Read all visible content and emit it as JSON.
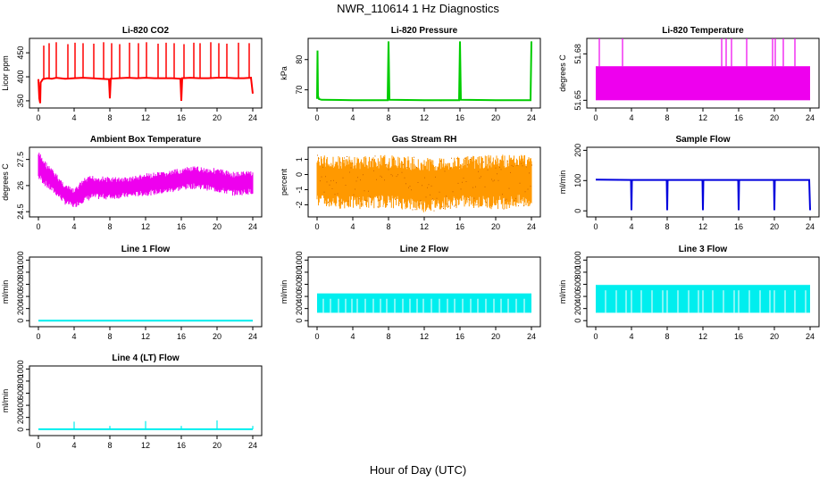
{
  "page": {
    "title": "NWR_110614  1 Hz Diagnostics",
    "xlabel": "Hour of Day (UTC)"
  },
  "chart_data": [
    {
      "type": "line",
      "title": "Li-820 CO2",
      "xlabel": "",
      "ylabel": "Licor ppm",
      "color": "#ff0000",
      "xlim": [
        -1,
        25
      ],
      "ylim": [
        335,
        480
      ],
      "xticks": [
        0,
        4,
        8,
        12,
        16,
        20,
        24
      ],
      "yticks": [
        350,
        400,
        450
      ],
      "series": [
        {
          "x": [
            0,
            0.1,
            0.2,
            0.25,
            0.5,
            1,
            1.5,
            2,
            3,
            4,
            5,
            6,
            7,
            7.9,
            8,
            8.1,
            9,
            10,
            11,
            12,
            13,
            14,
            15,
            15.9,
            16,
            16.1,
            17,
            18,
            19,
            20,
            21,
            22,
            23,
            23.8,
            24
          ],
          "y": [
            395,
            355,
            345,
            388,
            395,
            397,
            396,
            398,
            396,
            397,
            398,
            397,
            396,
            395,
            355,
            396,
            397,
            398,
            397,
            398,
            397,
            397,
            397,
            396,
            350,
            397,
            398,
            397,
            397,
            398,
            398,
            397,
            397,
            398,
            365
          ],
          "spikes_x": [
            0.6,
            1.2,
            2.0,
            3.3,
            4.1,
            5.0,
            6.2,
            7.3,
            8.2,
            9.1,
            10.2,
            11.2,
            12.1,
            13.4,
            14.3,
            15.2,
            16.3,
            17.4,
            18.1,
            19.3,
            20.2,
            21.1,
            22.4,
            23.6
          ],
          "spikes_y": [
            465,
            470,
            472,
            468,
            471,
            470,
            469,
            472,
            470,
            468,
            471,
            470,
            472,
            469,
            471,
            470,
            468,
            471,
            470,
            472,
            470,
            469,
            471,
            470
          ]
        }
      ]
    },
    {
      "type": "line",
      "title": "Li-820 Pressure",
      "xlabel": "",
      "ylabel": "kPa",
      "color": "#00cc00",
      "xlim": [
        -1,
        25
      ],
      "ylim": [
        64,
        87
      ],
      "xticks": [
        0,
        4,
        8,
        12,
        16,
        20,
        24
      ],
      "yticks": [
        70,
        80
      ],
      "series": [
        {
          "x": [
            0,
            0.05,
            0.1,
            0.2,
            0.5,
            4,
            7.9,
            8,
            8.1,
            12,
            15.9,
            16,
            16.1,
            20,
            23.9,
            24
          ],
          "y": [
            67,
            83,
            68,
            67,
            66.7,
            66.6,
            66.6,
            86,
            66.7,
            66.6,
            66.6,
            86,
            66.7,
            66.6,
            66.6,
            86
          ]
        }
      ]
    },
    {
      "type": "area",
      "title": "Li-820 Temperature",
      "xlabel": "",
      "ylabel": "degrees C",
      "color": "#ee00ee",
      "xlim": [
        -1,
        25
      ],
      "ylim": [
        51.645,
        51.69
      ],
      "xticks": [
        0,
        4,
        8,
        12,
        16,
        20,
        24
      ],
      "yticks": [
        51.65,
        51.68
      ],
      "band": [
        51.65,
        51.672
      ],
      "spikes_x": [
        0.4,
        3.0,
        14.1,
        14.6,
        15.2,
        16.9,
        19.8,
        20.1,
        21.0,
        22.3
      ],
      "spikes_y": [
        51.69,
        51.69,
        51.69,
        51.69,
        51.69,
        51.69,
        51.69,
        51.69,
        51.69,
        51.69
      ]
    },
    {
      "type": "area",
      "title": "Ambient Box Temperature",
      "xlabel": "",
      "ylabel": "degrees C",
      "color": "#ee00ee",
      "xlim": [
        -1,
        25
      ],
      "ylim": [
        24.2,
        28.2
      ],
      "xticks": [
        0,
        4,
        8,
        12,
        16,
        20,
        24
      ],
      "yticks": [
        24.5,
        26.0,
        27.5
      ],
      "series": [
        {
          "x": [
            0,
            0.5,
            1,
            2,
            3,
            4,
            5,
            6,
            8,
            10,
            12,
            14,
            16,
            17,
            18,
            20,
            22,
            24
          ],
          "upper": [
            28.0,
            27.6,
            27.3,
            26.7,
            26.1,
            25.8,
            26.4,
            26.6,
            26.5,
            26.5,
            26.7,
            26.8,
            27.0,
            27.1,
            27.1,
            27.0,
            26.8,
            26.9
          ],
          "lower": [
            26.3,
            26.1,
            25.8,
            25.4,
            24.9,
            24.7,
            25.0,
            25.2,
            25.2,
            25.3,
            25.4,
            25.5,
            25.7,
            25.8,
            25.8,
            25.6,
            25.4,
            25.5
          ]
        }
      ]
    },
    {
      "type": "scatter",
      "title": "Gas Stream RH",
      "xlabel": "",
      "ylabel": "percent",
      "color": "#ff9900",
      "color2": "#cc6600",
      "xlim": [
        -1,
        25
      ],
      "ylim": [
        -2.8,
        1.8
      ],
      "xticks": [
        0,
        4,
        8,
        12,
        16,
        20,
        24
      ],
      "yticks": [
        -2,
        -1,
        0,
        1
      ],
      "series": [
        {
          "x": [
            0,
            4,
            8,
            12,
            16,
            20,
            24
          ],
          "upper": [
            1.3,
            1.2,
            1.3,
            1.1,
            1.2,
            1.3,
            1.4
          ],
          "lower": [
            -2.2,
            -2.3,
            -2.2,
            -2.5,
            -2.2,
            -2.3,
            -2.2
          ]
        }
      ]
    },
    {
      "type": "line",
      "title": "Sample Flow",
      "xlabel": "",
      "ylabel": "ml/min",
      "color": "#0000dd",
      "xlim": [
        -1,
        25
      ],
      "ylim": [
        -20,
        210
      ],
      "xticks": [
        0,
        4,
        8,
        12,
        16,
        20,
        24
      ],
      "yticks": [
        0,
        100,
        200
      ],
      "series": [
        {
          "x": [
            0,
            3.95,
            4,
            4.05,
            7.95,
            8,
            8.05,
            11.95,
            12,
            12.05,
            15.95,
            16,
            16.05,
            19.95,
            20,
            20.05,
            23.9,
            24
          ],
          "y": [
            103,
            102,
            2,
            102,
            102,
            2,
            102,
            102,
            2,
            102,
            102,
            2,
            102,
            102,
            2,
            102,
            102,
            2
          ]
        }
      ]
    },
    {
      "type": "line",
      "title": "Line 1 Flow",
      "xlabel": "",
      "ylabel": "ml/min",
      "color": "#00eeee",
      "xlim": [
        -1,
        25
      ],
      "ylim": [
        -100,
        1050
      ],
      "xticks": [
        0,
        4,
        8,
        12,
        16,
        20,
        24
      ],
      "yticks": [
        0,
        200,
        400,
        600,
        800,
        1000
      ],
      "series": [
        {
          "x": [
            0,
            24
          ],
          "y": [
            0,
            0
          ]
        }
      ]
    },
    {
      "type": "area",
      "title": "Line 2 Flow",
      "xlabel": "",
      "ylabel": "ml/min",
      "color": "#00eeee",
      "xlim": [
        -1,
        25
      ],
      "ylim": [
        -100,
        1050
      ],
      "xticks": [
        0,
        4,
        8,
        12,
        16,
        20,
        24
      ],
      "yticks": [
        0,
        200,
        400,
        600,
        800,
        1000
      ],
      "band": [
        130,
        450
      ],
      "gaps_x": [
        0.7,
        1.5,
        2.4,
        3.2,
        3.9,
        4.5,
        5.4,
        6.3,
        7.1,
        7.8,
        8.7,
        9.6,
        10.4,
        11.2,
        11.9,
        12.8,
        13.7,
        14.6,
        15.4,
        16.3,
        17.2,
        18.0,
        18.9,
        19.8,
        20.6,
        21.4,
        22.3,
        23.2
      ]
    },
    {
      "type": "area",
      "title": "Line 3 Flow",
      "xlabel": "",
      "ylabel": "ml/min",
      "color": "#00eeee",
      "xlim": [
        -1,
        25
      ],
      "ylim": [
        -100,
        1050
      ],
      "xticks": [
        0,
        4,
        8,
        12,
        16,
        20,
        24
      ],
      "yticks": [
        0,
        200,
        400,
        600,
        800,
        1000
      ],
      "band": [
        130,
        590
      ],
      "gaps_x": [
        1.1,
        2.3,
        3.4,
        4.0,
        5.1,
        6.3,
        7.5,
        8.0,
        9.2,
        10.4,
        11.5,
        12.0,
        13.1,
        14.3,
        15.5,
        16.0,
        17.2,
        18.4,
        19.5,
        20.0,
        21.2,
        22.3,
        23.5
      ]
    },
    {
      "type": "line",
      "title": "Line 4 (LT) Flow",
      "xlabel": "",
      "ylabel": "ml/min",
      "color": "#00eeee",
      "xlim": [
        -1,
        25
      ],
      "ylim": [
        -100,
        1050
      ],
      "xticks": [
        0,
        4,
        8,
        12,
        16,
        20,
        24
      ],
      "yticks": [
        0,
        200,
        400,
        600,
        800,
        1000
      ],
      "series": [
        {
          "x": [
            0,
            24
          ],
          "y": [
            5,
            5
          ]
        }
      ],
      "spikes_x": [
        4,
        8,
        12,
        16,
        20,
        24
      ],
      "spikes_y": [
        130,
        60,
        140,
        60,
        150,
        60
      ]
    }
  ]
}
